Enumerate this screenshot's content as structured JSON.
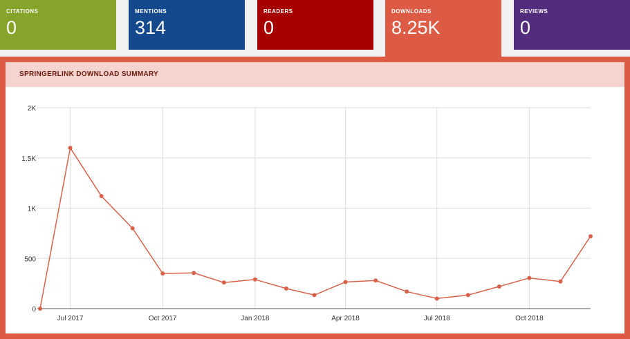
{
  "tabs": [
    {
      "id": "citations",
      "label": "CITATIONS",
      "value": "0"
    },
    {
      "id": "mentions",
      "label": "MENTIONS",
      "value": "314"
    },
    {
      "id": "readers",
      "label": "READERS",
      "value": "0"
    },
    {
      "id": "downloads",
      "label": "DOWNLOADS",
      "value": "8.25K"
    },
    {
      "id": "reviews",
      "label": "REVIEWS",
      "value": "0"
    }
  ],
  "panel": {
    "title": "SPRINGERLINK DOWNLOAD SUMMARY"
  },
  "colors": {
    "line": "#d9614a",
    "grid": "#dddddd",
    "accent": "#dd5b45"
  },
  "chart_data": {
    "type": "line",
    "title": "SPRINGERLINK DOWNLOAD SUMMARY",
    "xlabel": "",
    "ylabel": "",
    "ylim": [
      0,
      2000
    ],
    "xlim": [
      "2017-06-01",
      "2018-12-01"
    ],
    "x_ticks": [
      {
        "date": "2017-07-01",
        "label": "Jul 2017"
      },
      {
        "date": "2017-10-01",
        "label": "Oct 2017"
      },
      {
        "date": "2018-01-01",
        "label": "Jan 2018"
      },
      {
        "date": "2018-04-01",
        "label": "Apr 2018"
      },
      {
        "date": "2018-07-01",
        "label": "Jul 2018"
      },
      {
        "date": "2018-10-01",
        "label": "Oct 2018"
      }
    ],
    "y_ticks": [
      {
        "value": 0,
        "label": "0"
      },
      {
        "value": 500,
        "label": "500"
      },
      {
        "value": 1000,
        "label": "1K"
      },
      {
        "value": 1500,
        "label": "1.5K"
      },
      {
        "value": 2000,
        "label": "2K"
      }
    ],
    "grid": true,
    "series": [
      {
        "x": [
          "2017-06-01",
          "2017-07-01",
          "2017-08-01",
          "2017-09-01",
          "2017-10-01",
          "2017-11-01",
          "2017-12-01",
          "2018-01-01",
          "2018-02-01",
          "2018-03-01",
          "2018-04-01",
          "2018-05-01",
          "2018-06-01",
          "2018-07-01",
          "2018-08-01",
          "2018-09-01",
          "2018-10-01",
          "2018-11-01",
          "2018-12-01"
        ],
        "values": [
          0,
          1600,
          1120,
          800,
          350,
          355,
          260,
          290,
          200,
          135,
          265,
          280,
          170,
          100,
          135,
          220,
          305,
          270,
          720
        ]
      }
    ]
  }
}
